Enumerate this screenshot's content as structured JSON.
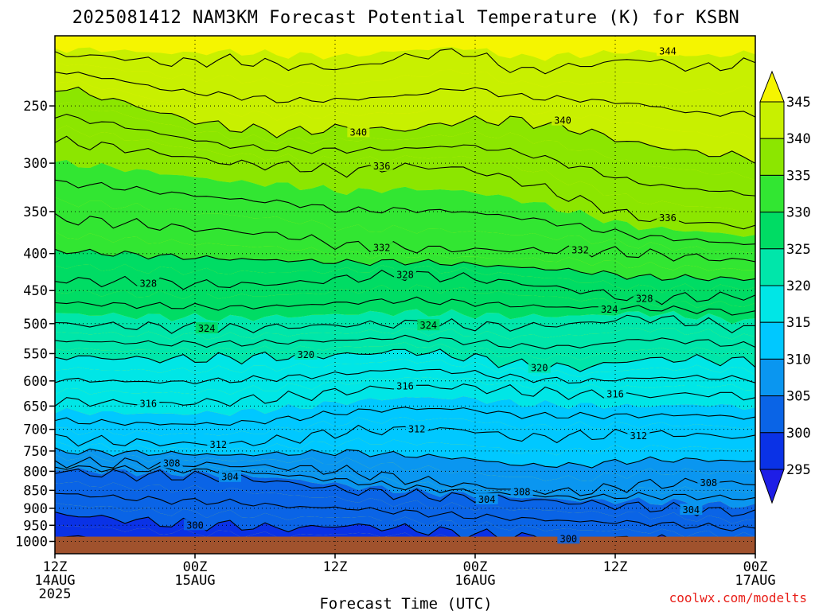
{
  "chart_data": {
    "type": "heatmap",
    "title": "2025081412 NAM3KM Forecast Potential Temperature (K) for KSBN",
    "xlabel": "Forecast Time (UTC)",
    "ylabel": "",
    "x_ticks": [
      {
        "hours": 0,
        "line1": "12Z",
        "line2": "14AUG",
        "line3": "2025"
      },
      {
        "hours": 12,
        "line1": "00Z",
        "line2": "15AUG",
        "line3": ""
      },
      {
        "hours": 24,
        "line1": "12Z",
        "line2": "",
        "line3": ""
      },
      {
        "hours": 36,
        "line1": "00Z",
        "line2": "16AUG",
        "line3": ""
      },
      {
        "hours": 48,
        "line1": "12Z",
        "line2": "",
        "line3": ""
      },
      {
        "hours": 60,
        "line1": "00Z",
        "line2": "17AUG",
        "line3": ""
      }
    ],
    "xlim": [
      0,
      60
    ],
    "y_axis_scale": "log-pressure (hPa), reversed",
    "y_ticks": [
      250,
      300,
      350,
      400,
      450,
      500,
      550,
      600,
      650,
      700,
      750,
      800,
      850,
      900,
      950,
      1000
    ],
    "ylim": [
      1040,
      200
    ],
    "grid": "dotted",
    "colorbar": {
      "position": "right",
      "levels": [
        295,
        300,
        305,
        310,
        315,
        320,
        325,
        330,
        335,
        340,
        345
      ],
      "tick_labels": [
        "295",
        "300",
        "305",
        "310",
        "315",
        "320",
        "325",
        "330",
        "335",
        "340",
        "345"
      ],
      "colors": [
        "#1e1ee6",
        "#0a32e6",
        "#0a64e6",
        "#0a96f0",
        "#00c8ff",
        "#00e6e6",
        "#00e6aa",
        "#00dc64",
        "#32e632",
        "#8ce600",
        "#c8f000",
        "#f5f500"
      ]
    },
    "terrain_color": "#a0522d",
    "contour_interval_K": 2,
    "contour_labels": [
      {
        "value": 344,
        "hours": 52.5,
        "hPa": 210
      },
      {
        "value": 340,
        "hours": 26,
        "hPa": 272
      },
      {
        "value": 340,
        "hours": 43.5,
        "hPa": 262
      },
      {
        "value": 336,
        "hours": 28,
        "hPa": 303
      },
      {
        "value": 336,
        "hours": 52.5,
        "hPa": 357
      },
      {
        "value": 332,
        "hours": 28,
        "hPa": 393
      },
      {
        "value": 332,
        "hours": 45,
        "hPa": 396
      },
      {
        "value": 328,
        "hours": 8,
        "hPa": 440
      },
      {
        "value": 328,
        "hours": 30,
        "hPa": 428
      },
      {
        "value": 328,
        "hours": 50.5,
        "hPa": 462
      },
      {
        "value": 324,
        "hours": 13,
        "hPa": 508
      },
      {
        "value": 324,
        "hours": 32,
        "hPa": 503
      },
      {
        "value": 324,
        "hours": 47.5,
        "hPa": 478
      },
      {
        "value": 320,
        "hours": 21.5,
        "hPa": 552
      },
      {
        "value": 320,
        "hours": 41.5,
        "hPa": 576
      },
      {
        "value": 316,
        "hours": 8,
        "hPa": 645
      },
      {
        "value": 316,
        "hours": 30,
        "hPa": 610
      },
      {
        "value": 316,
        "hours": 48,
        "hPa": 626
      },
      {
        "value": 312,
        "hours": 14,
        "hPa": 735
      },
      {
        "value": 312,
        "hours": 31,
        "hPa": 700
      },
      {
        "value": 312,
        "hours": 50,
        "hPa": 715
      },
      {
        "value": 308,
        "hours": 10,
        "hPa": 780
      },
      {
        "value": 308,
        "hours": 40,
        "hPa": 855
      },
      {
        "value": 308,
        "hours": 56,
        "hPa": 830
      },
      {
        "value": 304,
        "hours": 15,
        "hPa": 815
      },
      {
        "value": 304,
        "hours": 37,
        "hPa": 875
      },
      {
        "value": 304,
        "hours": 54.5,
        "hPa": 905
      },
      {
        "value": 300,
        "hours": 12,
        "hPa": 950
      },
      {
        "value": 300,
        "hours": 44,
        "hPa": 992
      }
    ],
    "credit": "coolwx.com/modelts"
  }
}
